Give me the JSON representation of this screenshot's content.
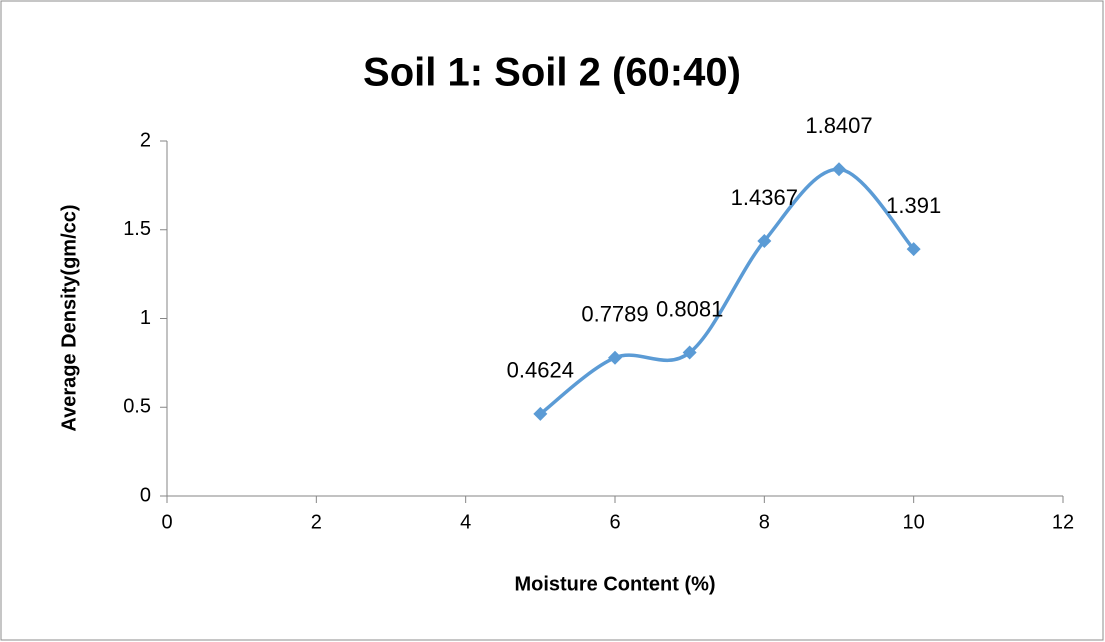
{
  "chart_data": {
    "type": "scatter-smooth",
    "title": "Soil 1: Soil 2 (60:40)",
    "x_label": "Moisture Content (%)",
    "y_label": "Average Density(gm/cc)",
    "x": [
      5,
      6,
      7,
      8,
      9,
      10
    ],
    "values": [
      0.4624,
      0.7789,
      0.8081,
      1.4367,
      1.8407,
      1.391
    ],
    "color": "#5b9bd5",
    "xlim": [
      0,
      12
    ],
    "xticks": [
      0,
      2,
      4,
      6,
      8,
      10,
      12
    ],
    "ylim": [
      0,
      2
    ],
    "yticks": [
      0,
      0.5,
      1,
      1.5,
      2
    ],
    "grid": false
  }
}
